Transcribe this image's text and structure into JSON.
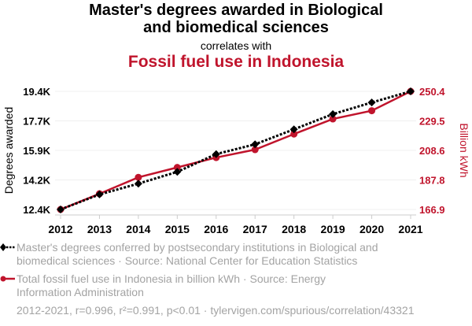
{
  "chart_data": {
    "type": "line",
    "title": "Master's degrees awarded in Biological and biomedical sciences",
    "title_lines": [
      "Master's degrees awarded in Biological",
      "and biomedical sciences"
    ],
    "connector": "correlates with",
    "subtitle": "Fossil fuel use in Indonesia",
    "x": [
      2012,
      2013,
      2014,
      2015,
      2016,
      2017,
      2018,
      2019,
      2020,
      2021
    ],
    "x_tick_labels": [
      "2012",
      "2013",
      "2014",
      "2015",
      "2016",
      "2017",
      "2018",
      "2019",
      "2020",
      "2021"
    ],
    "ylabel": "Degrees awarded",
    "y2label": "Billion kWh",
    "ylim": [
      12400,
      19400
    ],
    "y2lim": [
      166.9,
      250.4
    ],
    "y_tick_labels": [
      "12.4K",
      "14.2K",
      "15.9K",
      "17.7K",
      "19.4K"
    ],
    "y2_tick_labels": [
      "166.9",
      "187.8",
      "208.6",
      "229.5",
      "250.4"
    ],
    "grid": true,
    "series": [
      {
        "name": "Master's degrees conferred by postsecondary institutions in Biological and biomedical sciences",
        "axis": "left",
        "color": "#000000",
        "marker": "diamond",
        "style": "dotted",
        "values": [
          12400,
          13290,
          13930,
          14630,
          15680,
          16260,
          17150,
          18050,
          18740,
          19400
        ]
      },
      {
        "name": "Total fossil fuel use in Indonesia in billion kWh",
        "axis": "right",
        "color": "#c0142c",
        "marker": "circle",
        "style": "solid",
        "values": [
          166.9,
          178.0,
          189.6,
          196.6,
          203.6,
          209.2,
          220.2,
          230.9,
          236.7,
          250.4
        ]
      }
    ]
  },
  "legend": {
    "series1": [
      "Master's degrees conferred by postsecondary institutions in Biological and",
      "biomedical sciences · Source: National Center for Education Statistics"
    ],
    "series2": [
      "Total fossil fuel use in Indonesia in billion kWh · Source: Energy",
      "Information Administration"
    ],
    "stats": "2012-2021, r=0.996, r²=0.991, p<0.01 · tylervigen.com/spurious/correlation/43321"
  }
}
